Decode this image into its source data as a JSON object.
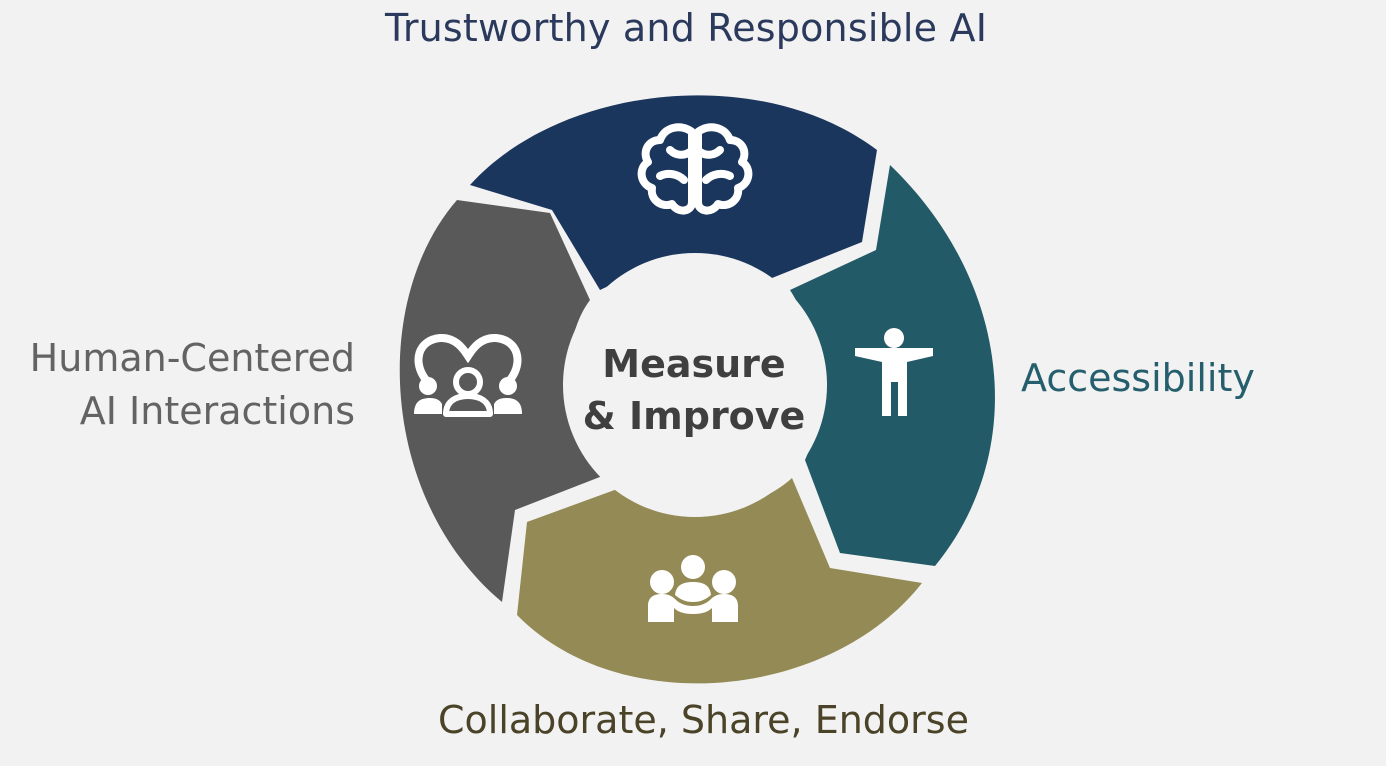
{
  "center": {
    "line1": "Measure",
    "line2": "& Improve"
  },
  "segments": [
    {
      "id": "top",
      "label": "Trustworthy and Responsible AI",
      "color": "#1b365d",
      "label_color": "#2b3a5c",
      "icon": "brain-icon"
    },
    {
      "id": "right",
      "label": "Accessibility",
      "color": "#235a67",
      "label_color": "#255e6c",
      "icon": "accessibility-person-icon"
    },
    {
      "id": "bottom",
      "label": "Collaborate, Share, Endorse",
      "color": "#948a55",
      "label_color": "#4a4328",
      "icon": "handshake-group-icon"
    },
    {
      "id": "left",
      "label_line1": "Human-Centered",
      "label_line2": "AI Interactions",
      "color": "#595959",
      "label_color": "#636363",
      "icon": "people-group-icon"
    }
  ],
  "colors": {
    "background": "#f2f2f2",
    "center_fill": "#f2f2f2",
    "center_text": "#3f3f3f",
    "icon": "#ffffff"
  }
}
